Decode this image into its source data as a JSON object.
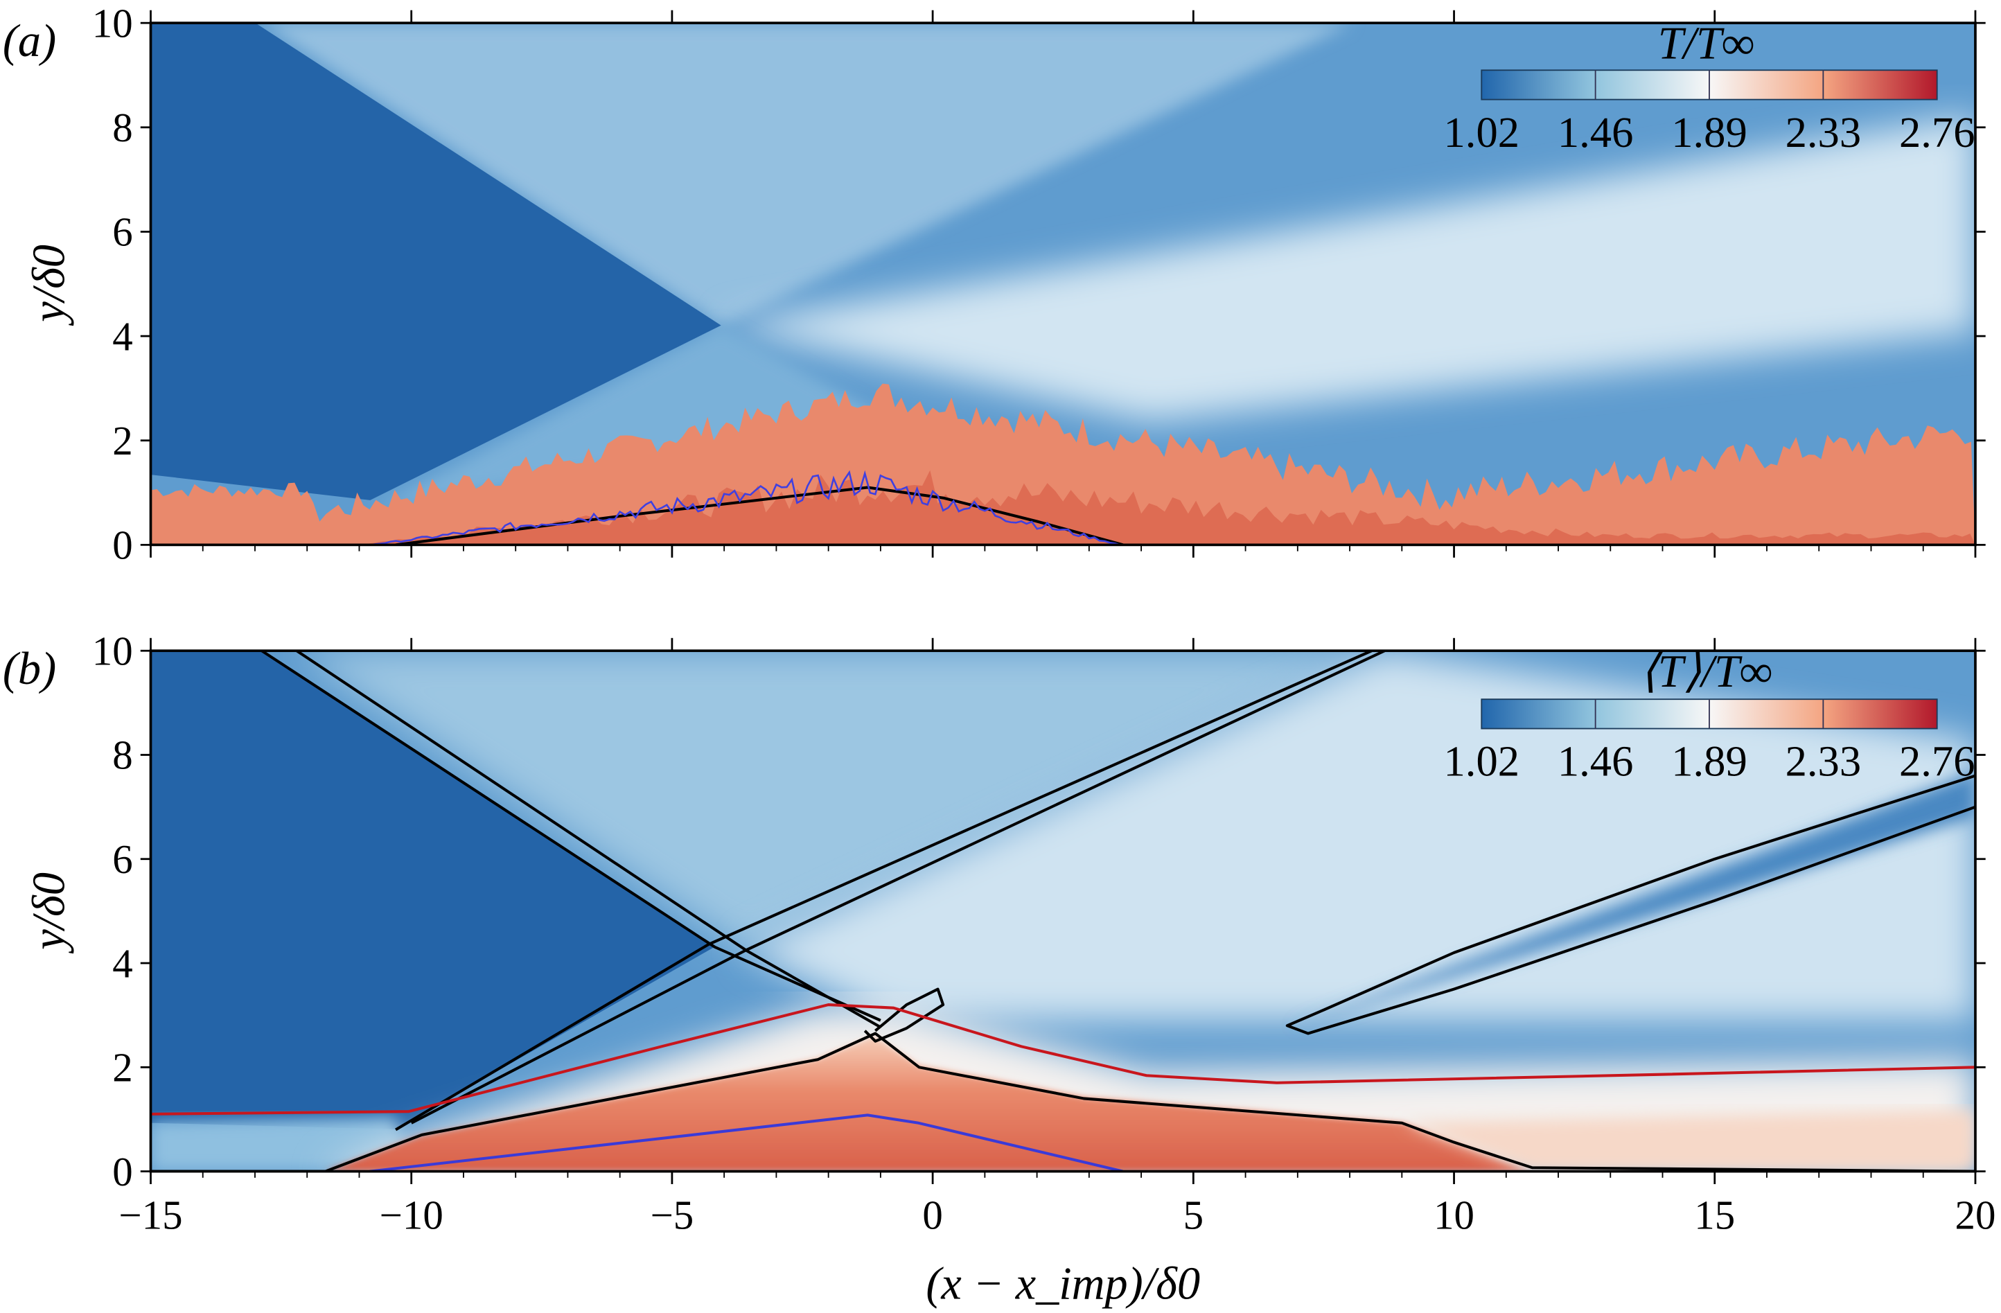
{
  "chart_data": [
    {
      "type": "heatmap",
      "panel_label": "(a)",
      "colorbar": {
        "title": "T/T∞",
        "ticks": [
          "1.02",
          "1.46",
          "1.89",
          "2.33",
          "2.76"
        ],
        "colors": [
          "#2166ac",
          "#92c5de",
          "#f7f7f7",
          "#f4a582",
          "#b2182b"
        ],
        "placement": "top-right"
      },
      "ylabel": "y/δ0",
      "xlim": [
        -15,
        20
      ],
      "ylim": [
        0,
        10
      ],
      "xticks": [
        "−15",
        "−10",
        "−5",
        "0",
        "5",
        "10",
        "15",
        "20"
      ],
      "yticks": [
        "0",
        "2",
        "4",
        "6",
        "8",
        "10"
      ],
      "contours": [
        {
          "color": "#000000",
          "points": [
            [
              -10.3,
              0
            ],
            [
              -6,
              0.55
            ],
            [
              -1.25,
              1.1
            ],
            [
              0.2,
              0.9
            ],
            [
              2,
              0.45
            ],
            [
              3.65,
              0
            ]
          ]
        }
      ]
    },
    {
      "type": "heatmap",
      "panel_label": "(b)",
      "colorbar": {
        "title": "⟨T⟩/T∞",
        "ticks": [
          "1.02",
          "1.46",
          "1.89",
          "2.33",
          "2.76"
        ],
        "colors": [
          "#2166ac",
          "#92c5de",
          "#f7f7f7",
          "#f4a582",
          "#b2182b"
        ],
        "placement": "top-right"
      },
      "xlabel": "(x − x_imp)/δ0",
      "ylabel": "y/δ0",
      "xlim": [
        -15,
        20
      ],
      "ylim": [
        0,
        10
      ],
      "xticks": [
        "−15",
        "−10",
        "−5",
        "0",
        "5",
        "10",
        "15",
        "20"
      ],
      "yticks": [
        "0",
        "2",
        "4",
        "6",
        "8",
        "10"
      ],
      "contours": [
        {
          "color": "#000000",
          "points": [
            [
              -12.87,
              10
            ],
            [
              -4.18,
              4.31
            ],
            [
              -1.0,
              2.9
            ]
          ]
        },
        {
          "color": "#000000",
          "points": [
            [
              -12.2,
              10
            ],
            [
              -3.57,
              4.24
            ],
            [
              -1.0,
              2.77
            ]
          ]
        },
        {
          "color": "#000000",
          "points": [
            [
              -10.3,
              0.8
            ],
            [
              -4.3,
              4.36
            ],
            [
              8.42,
              10
            ]
          ]
        },
        {
          "color": "#000000",
          "points": [
            [
              -10.0,
              0.93
            ],
            [
              -3.6,
              4.24
            ],
            [
              8.67,
              10
            ]
          ]
        },
        {
          "color": "#000000",
          "points": [
            [
              -1.1,
              2.7
            ],
            [
              -0.5,
              3.2
            ],
            [
              0.1,
              3.5
            ],
            [
              0.2,
              3.2
            ],
            [
              -0.5,
              2.75
            ],
            [
              -1.1,
              2.5
            ],
            [
              -1.3,
              2.7
            ]
          ]
        },
        {
          "color": "#000000",
          "points": [
            [
              20,
              7.6
            ],
            [
              15,
              6.0
            ],
            [
              10,
              4.2
            ],
            [
              7.5,
              3.1
            ],
            [
              6.8,
              2.8
            ],
            [
              7.2,
              2.65
            ],
            [
              10,
              3.5
            ],
            [
              15,
              5.2
            ],
            [
              20,
              7.0
            ]
          ]
        },
        {
          "color": "#000000",
          "points": [
            [
              -15,
              0
            ],
            [
              -11.65,
              0
            ],
            [
              -9.8,
              0.7
            ],
            [
              -2.2,
              2.15
            ],
            [
              -1.1,
              2.65
            ],
            [
              -0.26,
              2.0
            ],
            [
              2.9,
              1.4
            ],
            [
              9.0,
              0.93
            ],
            [
              10,
              0.56
            ],
            [
              11.5,
              0.07
            ],
            [
              20,
              0
            ]
          ]
        },
        {
          "color": "#c8161d",
          "points": [
            [
              -15,
              1.1
            ],
            [
              -10.05,
              1.15
            ],
            [
              -5.2,
              2.4
            ],
            [
              -2,
              3.2
            ],
            [
              -0.75,
              3.14
            ],
            [
              1.7,
              2.4
            ],
            [
              4.1,
              1.84
            ],
            [
              6.6,
              1.7
            ],
            [
              13.9,
              1.86
            ],
            [
              20,
              2.0
            ]
          ]
        },
        {
          "color": "#3a3ad8",
          "points": [
            [
              -10.8,
              0
            ],
            [
              -1.25,
              1.08
            ],
            [
              -0.27,
              0.93
            ],
            [
              3.65,
              0
            ]
          ]
        }
      ]
    }
  ]
}
